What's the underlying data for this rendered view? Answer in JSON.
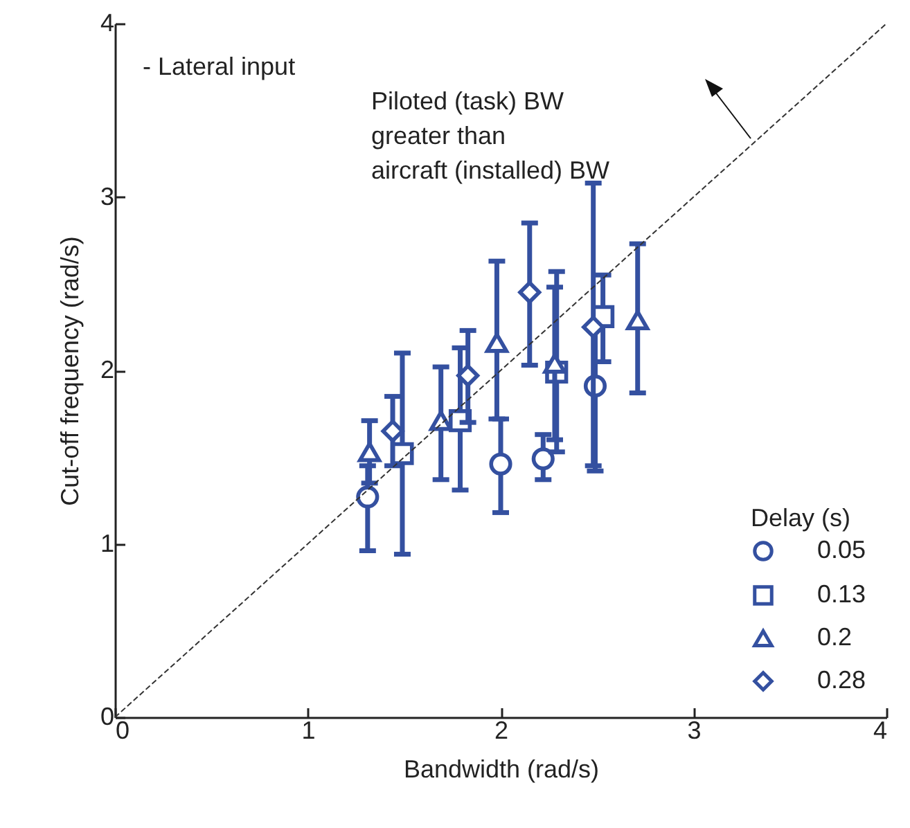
{
  "chart_data": {
    "type": "scatter",
    "xlabel": "Bandwidth (rad/s)",
    "ylabel": "Cut-off frequency (rad/s)",
    "legend_title": "Delay (s)",
    "legend": "bottom right",
    "grid": false,
    "xlim": [
      0,
      4
    ],
    "ylim": [
      0,
      4
    ],
    "xticks": [
      0,
      1,
      2,
      3,
      4
    ],
    "yticks": [
      0,
      1,
      2,
      3,
      4
    ],
    "annotations": [
      "- Lateral input",
      "Piloted (task) BW\ngreater than\naircraft (installed) BW"
    ],
    "series": [
      {
        "name": "0.05",
        "color": "#3450a0",
        "marker": "circle",
        "x": [
          1.31,
          2.0,
          2.22,
          2.49
        ],
        "values": [
          1.27,
          1.46,
          1.49,
          1.91
        ],
        "errors": [
          [
            0.96,
            1.45
          ],
          [
            1.18,
            1.72
          ],
          [
            1.37,
            1.63
          ],
          [
            1.42,
            2.25
          ]
        ]
      },
      {
        "name": "0.13",
        "color": "#3450a0",
        "marker": "square",
        "x": [
          1.49,
          1.79,
          2.29,
          2.53
        ],
        "values": [
          1.52,
          1.71,
          1.99,
          2.31
        ],
        "errors": [
          [
            0.94,
            2.1
          ],
          [
            1.31,
            2.13
          ],
          [
            1.53,
            2.57
          ],
          [
            2.05,
            2.55
          ]
        ]
      },
      {
        "name": "0.2",
        "color": "#3450a0",
        "marker": "triangle",
        "x": [
          1.32,
          1.69,
          1.98,
          2.28,
          2.71
        ],
        "values": [
          1.53,
          1.71,
          2.16,
          2.04,
          2.29
        ],
        "errors": [
          [
            1.35,
            1.71
          ],
          [
            1.37,
            2.02
          ],
          [
            1.72,
            2.63
          ],
          [
            1.6,
            2.48
          ],
          [
            1.87,
            2.73
          ]
        ]
      },
      {
        "name": "0.28",
        "color": "#3450a0",
        "marker": "diamond",
        "x": [
          1.44,
          1.83,
          2.15,
          2.48
        ],
        "values": [
          1.65,
          1.97,
          2.45,
          2.25
        ],
        "errors": [
          [
            1.45,
            1.85
          ],
          [
            1.7,
            2.23
          ],
          [
            2.03,
            2.85
          ],
          [
            1.45,
            3.08
          ]
        ]
      },
      {
        "type": "line",
        "color": "#333333",
        "line_style": "dashed",
        "x": [
          0,
          4
        ],
        "values": [
          0,
          4
        ]
      }
    ]
  }
}
